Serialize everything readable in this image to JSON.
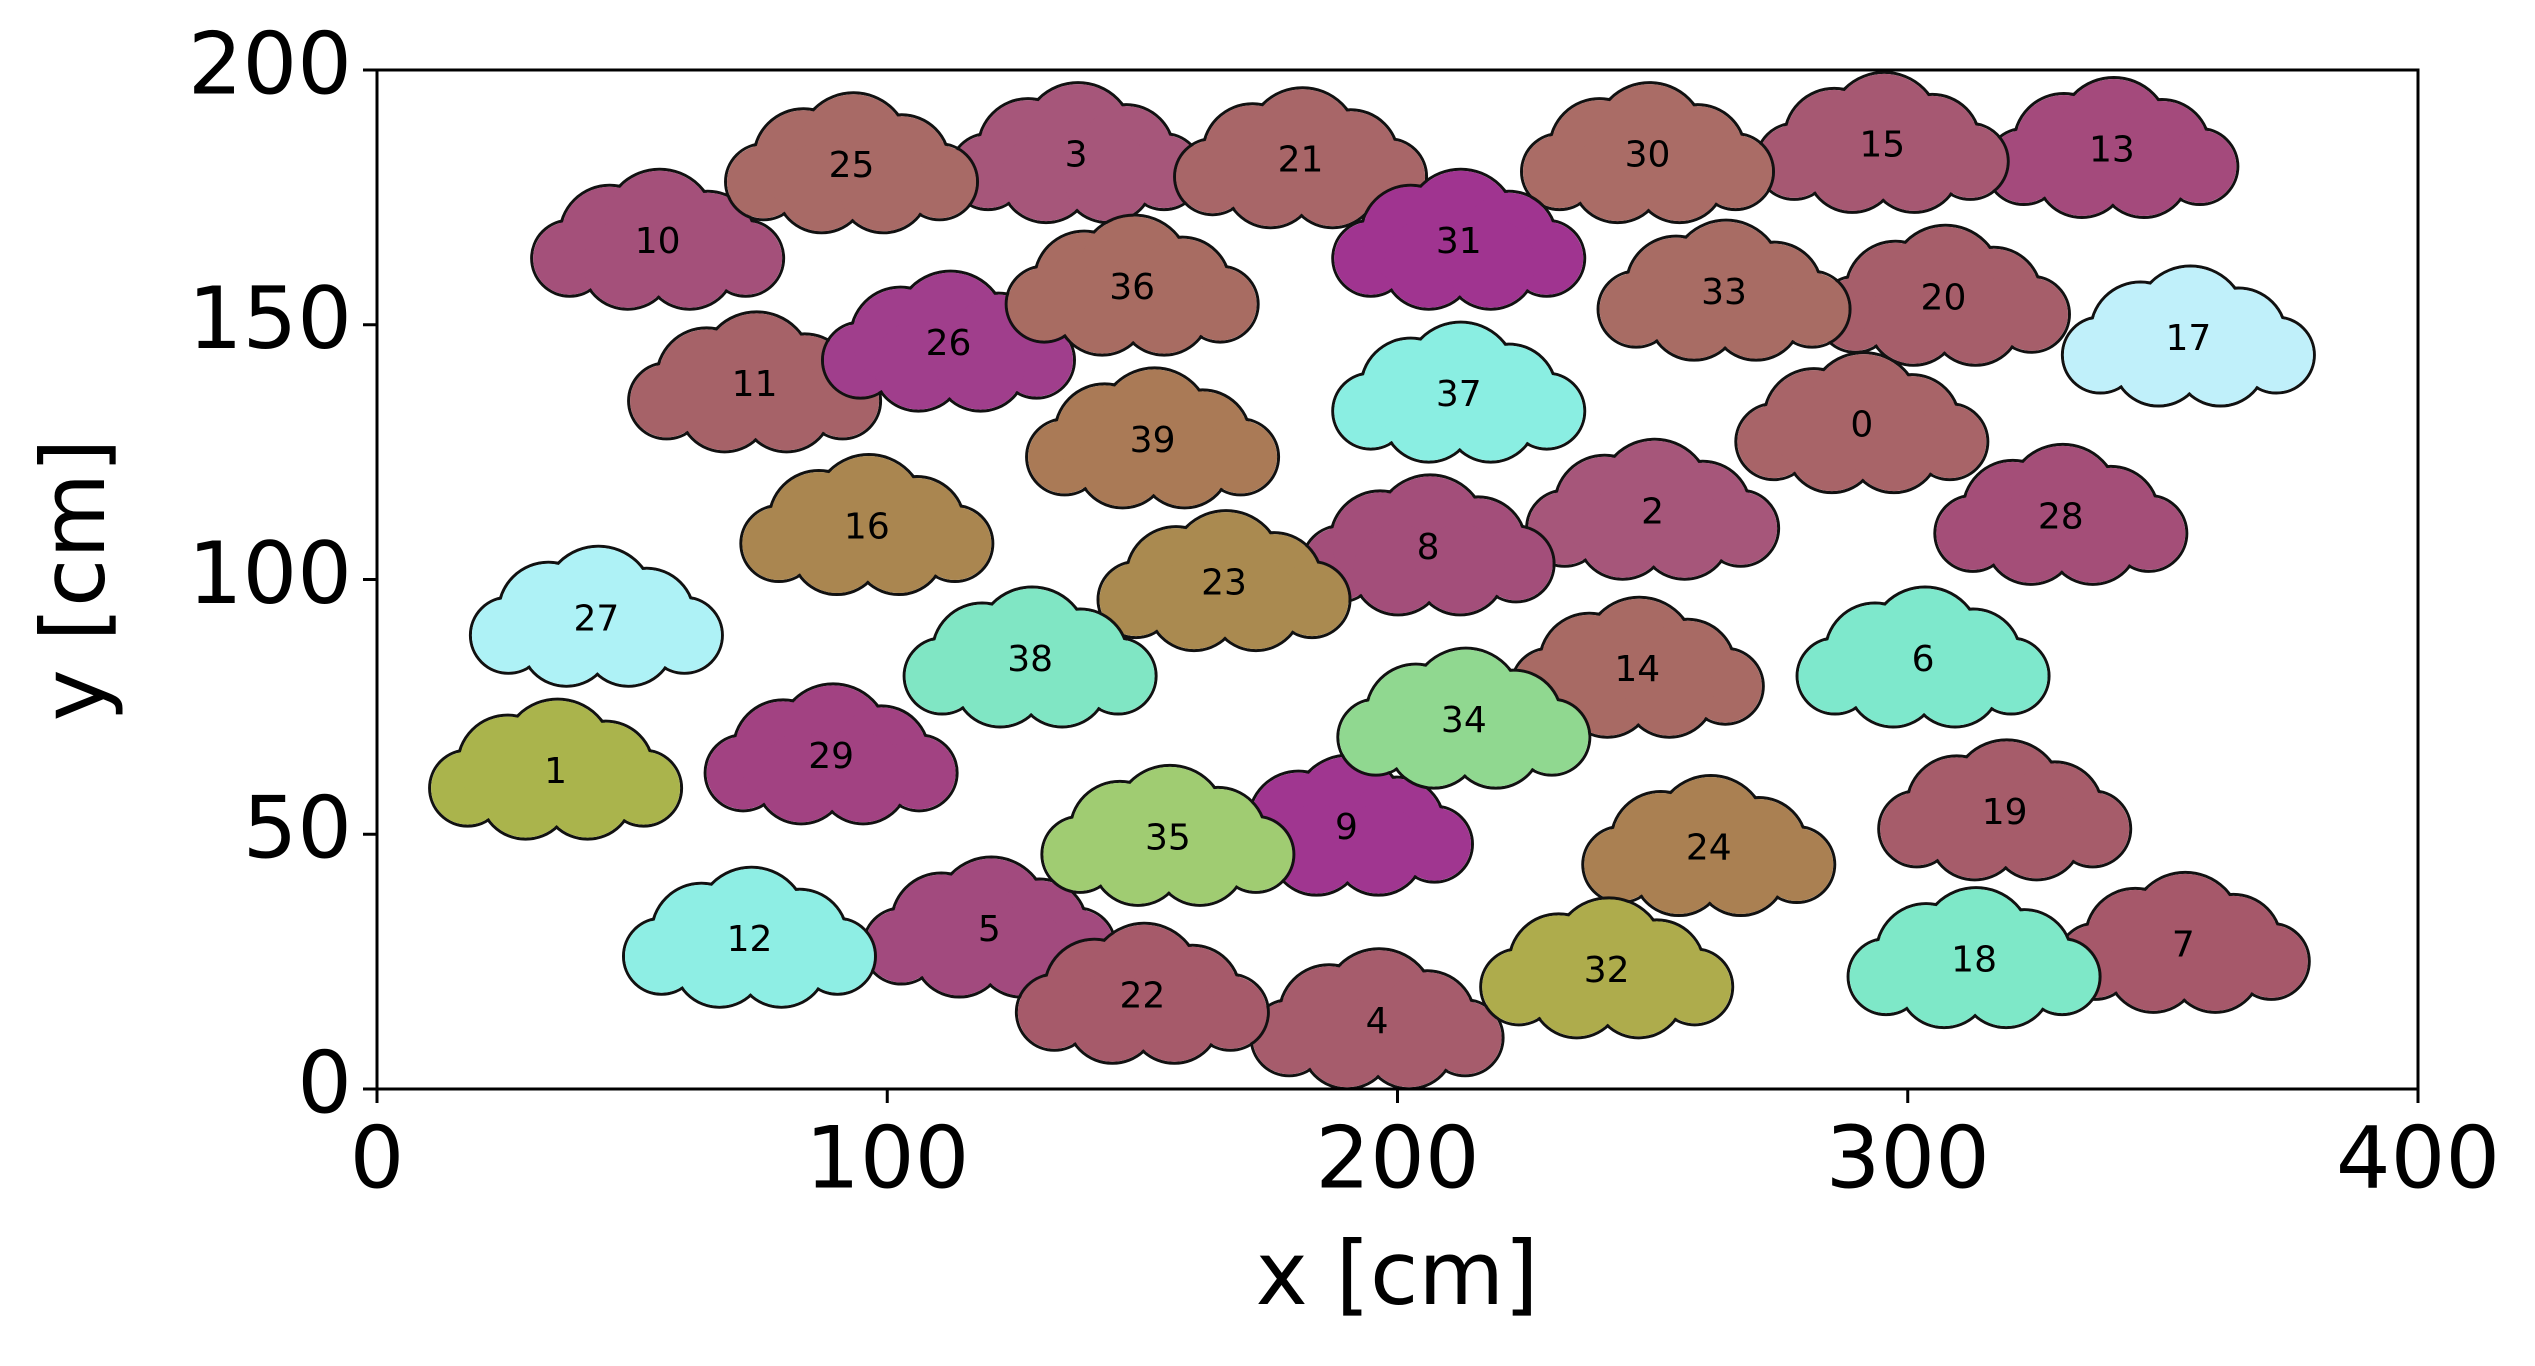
{
  "chart_data": {
    "type": "scatter",
    "xlabel": "x [cm]",
    "ylabel": "y [cm]",
    "xlim": [
      0,
      400
    ],
    "ylim": [
      0,
      200
    ],
    "xticks": [
      0,
      100,
      200,
      300,
      400
    ],
    "yticks": [
      0,
      50,
      100,
      150,
      200
    ],
    "labels": [
      "0",
      "1",
      "2",
      "3",
      "4",
      "5",
      "6",
      "7",
      "8",
      "9",
      "10",
      "11",
      "12",
      "13",
      "14",
      "15",
      "16",
      "17",
      "18",
      "19",
      "20",
      "21",
      "22",
      "23",
      "24",
      "25",
      "26",
      "27",
      "28",
      "29",
      "30",
      "31",
      "32",
      "33",
      "34",
      "35",
      "36",
      "37",
      "38",
      "39"
    ],
    "x": [
      291,
      35,
      250,
      137,
      196,
      120,
      303,
      354,
      206,
      190,
      55,
      74,
      73,
      340,
      247,
      295,
      96,
      355,
      313,
      319,
      307,
      181,
      150,
      166,
      261,
      93,
      112,
      43,
      330,
      89,
      249,
      212,
      241,
      264,
      213,
      155,
      148,
      212,
      128,
      152
    ],
    "y": [
      130,
      62,
      113,
      183,
      13,
      31,
      84,
      28,
      106,
      51,
      166,
      138,
      29,
      184,
      82,
      185,
      110,
      147,
      25,
      54,
      155,
      182,
      18,
      99,
      47,
      181,
      146,
      92,
      112,
      65,
      183,
      166,
      23,
      156,
      72,
      49,
      157,
      136,
      84,
      127
    ],
    "colors": [
      "#a86468",
      "#aab44c",
      "#a6567a",
      "#a6567a",
      "#a65c6c",
      "#a24a7e",
      "#7ee8cc",
      "#a6586a",
      "#a34e7a",
      "#a03690",
      "#a4507a",
      "#a66268",
      "#8eeee4",
      "#a44a7c",
      "#a86a64",
      "#a65872",
      "#aa8650",
      "#c0f0fa",
      "#7ee8c8",
      "#a65c6a",
      "#a65e6a",
      "#a86668",
      "#a65a6a",
      "#aa8a50",
      "#aa8052",
      "#a86a66",
      "#a03e8c",
      "#aef2f6",
      "#a44e78",
      "#a24282",
      "#aa6c66",
      "#a03490",
      "#aeac4c",
      "#a86c64",
      "#90d890",
      "#a0cc72",
      "#a86c62",
      "#8aeee2",
      "#80e6c4",
      "#aa7a56"
    ]
  }
}
